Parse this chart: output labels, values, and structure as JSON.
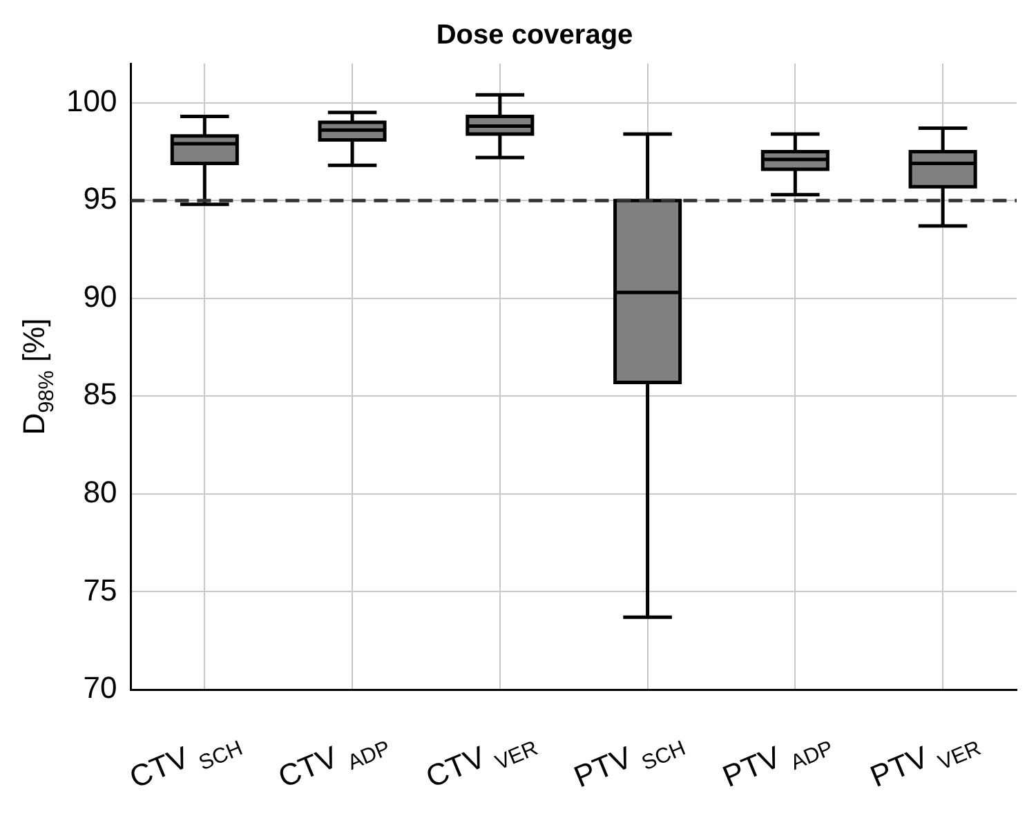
{
  "chart_data": {
    "type": "box",
    "title": "Dose coverage",
    "ylabel": "D$_{98%}$ [%]",
    "categories": [
      "CTV $_{SCH}$",
      "CTV $_{ADP}$",
      "CTV $_{VER}$",
      "PTV $_{SCH}$",
      "PTV $_{ADP}$",
      "PTV $_{VER}$"
    ],
    "color": "#808080",
    "boxes": [
      {
        "low": 94.8,
        "q1": 96.9,
        "median": 97.9,
        "q3": 98.3,
        "high": 99.3
      },
      {
        "low": 96.8,
        "q1": 98.1,
        "median": 98.6,
        "q3": 99.0,
        "high": 99.5
      },
      {
        "low": 97.2,
        "q1": 98.4,
        "median": 98.8,
        "q3": 99.3,
        "high": 100.4
      },
      {
        "low": 73.7,
        "q1": 85.7,
        "median": 90.3,
        "q3": 95.0,
        "high": 98.4
      },
      {
        "low": 95.3,
        "q1": 96.6,
        "median": 97.1,
        "q3": 97.5,
        "high": 98.4
      },
      {
        "low": 93.7,
        "q1": 95.7,
        "median": 96.9,
        "q3": 97.5,
        "high": 98.7
      }
    ],
    "ylim": [
      70,
      102
    ],
    "yticks": [
      70,
      75,
      80,
      85,
      90,
      95,
      100
    ],
    "grid": true,
    "ref_lines": [
      {
        "axis": "y",
        "value": 95,
        "line_style": "dashed",
        "color": "#333333"
      }
    ]
  }
}
